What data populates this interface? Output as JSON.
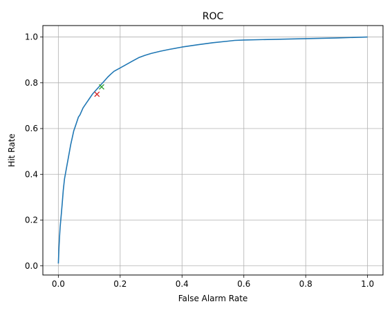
{
  "chart_data": {
    "type": "line",
    "title": "ROC",
    "xlabel": "False Alarm Rate",
    "ylabel": "Hit Rate",
    "xlim": [
      -0.05,
      1.05
    ],
    "ylim": [
      -0.04,
      1.05
    ],
    "grid": true,
    "xticks": [
      "0.0",
      "0.2",
      "0.4",
      "0.6",
      "0.8",
      "1.0"
    ],
    "yticks": [
      "0.0",
      "0.2",
      "0.4",
      "0.6",
      "0.8",
      "1.0"
    ],
    "series": [
      {
        "color": "#1f77b4",
        "x": [
          0.0,
          0.002,
          0.004,
          0.006,
          0.008,
          0.01,
          0.013,
          0.016,
          0.02,
          0.024,
          0.028,
          0.032,
          0.036,
          0.04,
          0.045,
          0.05,
          0.055,
          0.06,
          0.065,
          0.07,
          0.08,
          0.09,
          0.1,
          0.11,
          0.12,
          0.13,
          0.14,
          0.15,
          0.16,
          0.17,
          0.18,
          0.2,
          0.22,
          0.24,
          0.26,
          0.28,
          0.3,
          0.33,
          0.36,
          0.4,
          0.45,
          0.5,
          0.55,
          0.57,
          0.6,
          0.7,
          0.8,
          0.9,
          1.0
        ],
        "y": [
          0.01,
          0.08,
          0.13,
          0.17,
          0.2,
          0.23,
          0.28,
          0.33,
          0.38,
          0.41,
          0.44,
          0.47,
          0.5,
          0.53,
          0.56,
          0.59,
          0.61,
          0.63,
          0.65,
          0.66,
          0.69,
          0.71,
          0.73,
          0.75,
          0.765,
          0.78,
          0.795,
          0.81,
          0.825,
          0.838,
          0.85,
          0.865,
          0.88,
          0.895,
          0.91,
          0.92,
          0.928,
          0.938,
          0.946,
          0.956,
          0.966,
          0.975,
          0.982,
          0.985,
          0.987,
          0.99,
          0.993,
          0.996,
          1.0
        ]
      }
    ],
    "markers": [
      {
        "x": 0.125,
        "y": 0.75,
        "color": "#d62728",
        "symbol": "x"
      },
      {
        "x": 0.14,
        "y": 0.782,
        "color": "#2ca02c",
        "symbol": "x"
      }
    ]
  }
}
